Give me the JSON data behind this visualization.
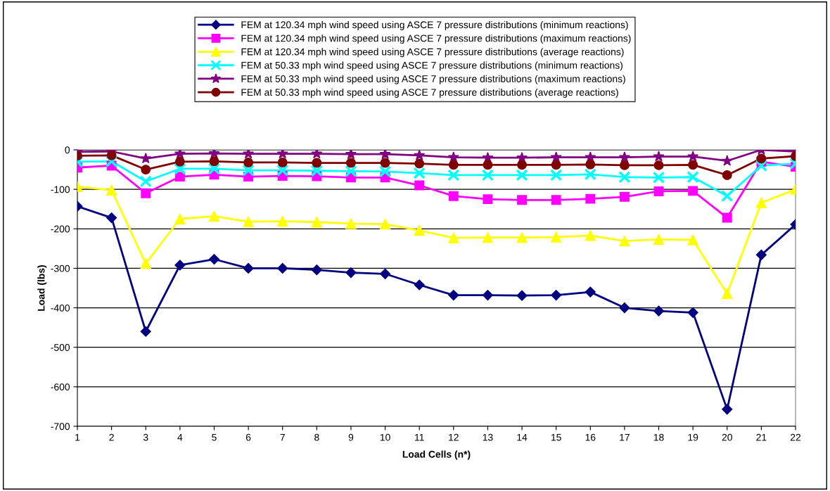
{
  "chart_data": {
    "type": "line",
    "xlabel": "Load Cells (n*)",
    "ylabel": "Load (lbs)",
    "x": [
      1,
      2,
      3,
      4,
      5,
      6,
      7,
      8,
      9,
      10,
      11,
      12,
      13,
      14,
      15,
      16,
      17,
      18,
      19,
      20,
      21,
      22
    ],
    "xlim": [
      1,
      22
    ],
    "xticks": [
      1,
      2,
      3,
      4,
      5,
      6,
      7,
      8,
      9,
      10,
      11,
      12,
      13,
      14,
      15,
      16,
      17,
      18,
      19,
      20,
      21,
      22
    ],
    "ylim": [
      -700,
      0
    ],
    "yticks": [
      -700,
      -600,
      -500,
      -400,
      -300,
      -200,
      -100,
      0
    ],
    "grid": "y",
    "legend": "top",
    "line_style": "solid",
    "series": [
      {
        "name": "FEM at 120.34 mph wind speed using ASCE 7 pressure distributions (minimum reactions)",
        "color": "#000080",
        "marker": "diamond",
        "values": [
          -143,
          -172,
          -460,
          -292,
          -277,
          -300,
          -300,
          -304,
          -311,
          -314,
          -342,
          -368,
          -368,
          -369,
          -368,
          -360,
          -400,
          -408,
          -412,
          -657,
          -266,
          -189
        ]
      },
      {
        "name": "FEM at 120.34 mph wind speed using ASCE 7 pressure distributions (maximum reactions)",
        "color": "#ff00ff",
        "marker": "square",
        "values": [
          -45,
          -40,
          -110,
          -68,
          -63,
          -68,
          -66,
          -67,
          -70,
          -70,
          -90,
          -117,
          -125,
          -127,
          -127,
          -124,
          -119,
          -105,
          -104,
          -172,
          -30,
          -43
        ]
      },
      {
        "name": "FEM at 120.34 mph wind speed using ASCE 7 pressure distributions (average reactions)",
        "color": "#ffff00",
        "marker": "triangle",
        "values": [
          -93,
          -102,
          -288,
          -175,
          -168,
          -182,
          -181,
          -183,
          -187,
          -188,
          -204,
          -223,
          -222,
          -222,
          -221,
          -217,
          -231,
          -227,
          -228,
          -364,
          -134,
          -100
        ]
      },
      {
        "name": "FEM at 50.33 mph wind speed using ASCE 7 pressure distributions (minimum reactions)",
        "color": "#00ffff",
        "marker": "cross",
        "values": [
          -30,
          -29,
          -80,
          -48,
          -48,
          -52,
          -52,
          -53,
          -54,
          -55,
          -59,
          -64,
          -64,
          -64,
          -64,
          -62,
          -69,
          -70,
          -69,
          -117,
          -40,
          -35
        ]
      },
      {
        "name": "FEM at 50.33 mph wind speed using ASCE 7 pressure distributions (maximum reactions)",
        "color": "#800080",
        "marker": "star",
        "values": [
          -5,
          -4,
          -22,
          -10,
          -9,
          -10,
          -10,
          -10,
          -11,
          -11,
          -14,
          -19,
          -20,
          -20,
          -19,
          -19,
          -19,
          -17,
          -17,
          -28,
          0,
          -4
        ]
      },
      {
        "name": "FEM at 50.33 mph wind speed using ASCE 7 pressure distributions (average reactions)",
        "color": "#800000",
        "marker": "circle",
        "values": [
          -15,
          -14,
          -50,
          -30,
          -29,
          -32,
          -32,
          -33,
          -33,
          -33,
          -35,
          -38,
          -38,
          -38,
          -38,
          -37,
          -39,
          -39,
          -38,
          -64,
          -22,
          -16
        ]
      }
    ]
  }
}
